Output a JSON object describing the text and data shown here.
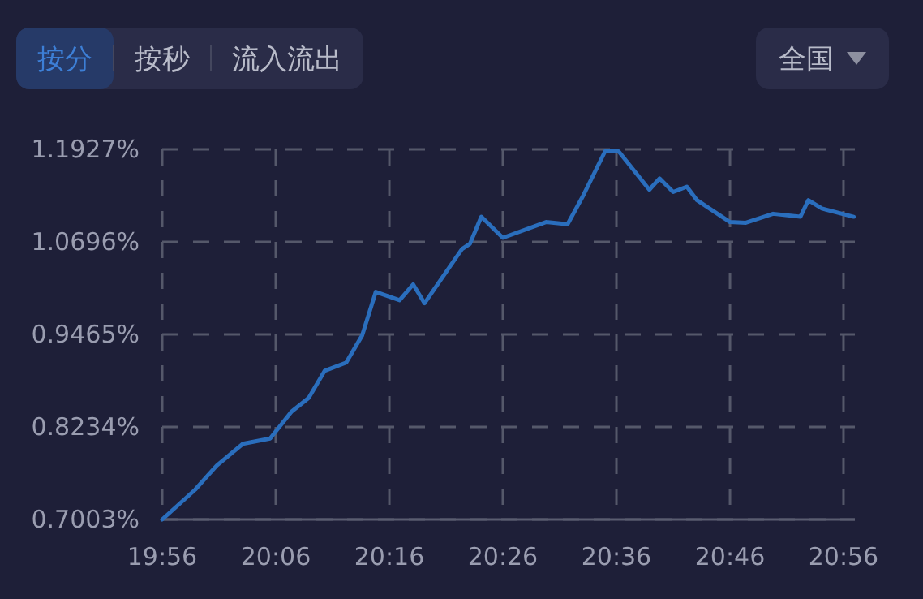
{
  "chart_data": {
    "type": "line",
    "annotations": [
      "按分",
      "按秒",
      "流入流出",
      "全国"
    ],
    "xlim": [
      19.9333,
      20.95
    ],
    "ylim": [
      0.7003,
      1.1927
    ],
    "xticks": [
      {
        "value": 19.9333,
        "label": "19:56"
      },
      {
        "value": 20.1,
        "label": "20:06"
      },
      {
        "value": 20.2667,
        "label": "20:16"
      },
      {
        "value": 20.4333,
        "label": "20:26"
      },
      {
        "value": 20.6,
        "label": "20:36"
      },
      {
        "value": 20.7667,
        "label": "20:46"
      },
      {
        "value": 20.9333,
        "label": "20:56"
      }
    ],
    "yticks": [
      {
        "value": 0.7003,
        "label": "0.7003%"
      },
      {
        "value": 0.8234,
        "label": "0.8234%"
      },
      {
        "value": 0.9465,
        "label": "0.9465%"
      },
      {
        "value": 1.0696,
        "label": "1.0696%"
      },
      {
        "value": 1.1927,
        "label": "1.1927%"
      }
    ],
    "grid": true,
    "series": [
      {
        "color": "#2a6ebd",
        "x": [
          19.9333,
          19.9817,
          20.0133,
          20.0517,
          20.0917,
          20.1233,
          20.1483,
          20.1717,
          20.2033,
          20.2267,
          20.2467,
          20.2817,
          20.3017,
          20.3183,
          20.3733,
          20.385,
          20.4017,
          20.4333,
          20.4967,
          20.5283,
          20.5517,
          20.5833,
          20.6033,
          20.6483,
          20.6633,
          20.6833,
          20.7033,
          20.7183,
          20.7667,
          20.79,
          20.83,
          20.87,
          20.8817,
          20.9017,
          20.9483
        ],
        "values": [
          0.7003,
          0.74,
          0.772,
          0.801,
          0.808,
          0.844,
          0.862,
          0.898,
          0.909,
          0.945,
          1.003,
          0.992,
          1.013,
          0.988,
          1.06,
          1.067,
          1.103,
          1.075,
          1.096,
          1.093,
          1.132,
          1.19,
          1.19,
          1.139,
          1.154,
          1.136,
          1.143,
          1.125,
          1.096,
          1.095,
          1.107,
          1.103,
          1.125,
          1.114,
          1.103
        ]
      }
    ]
  }
}
